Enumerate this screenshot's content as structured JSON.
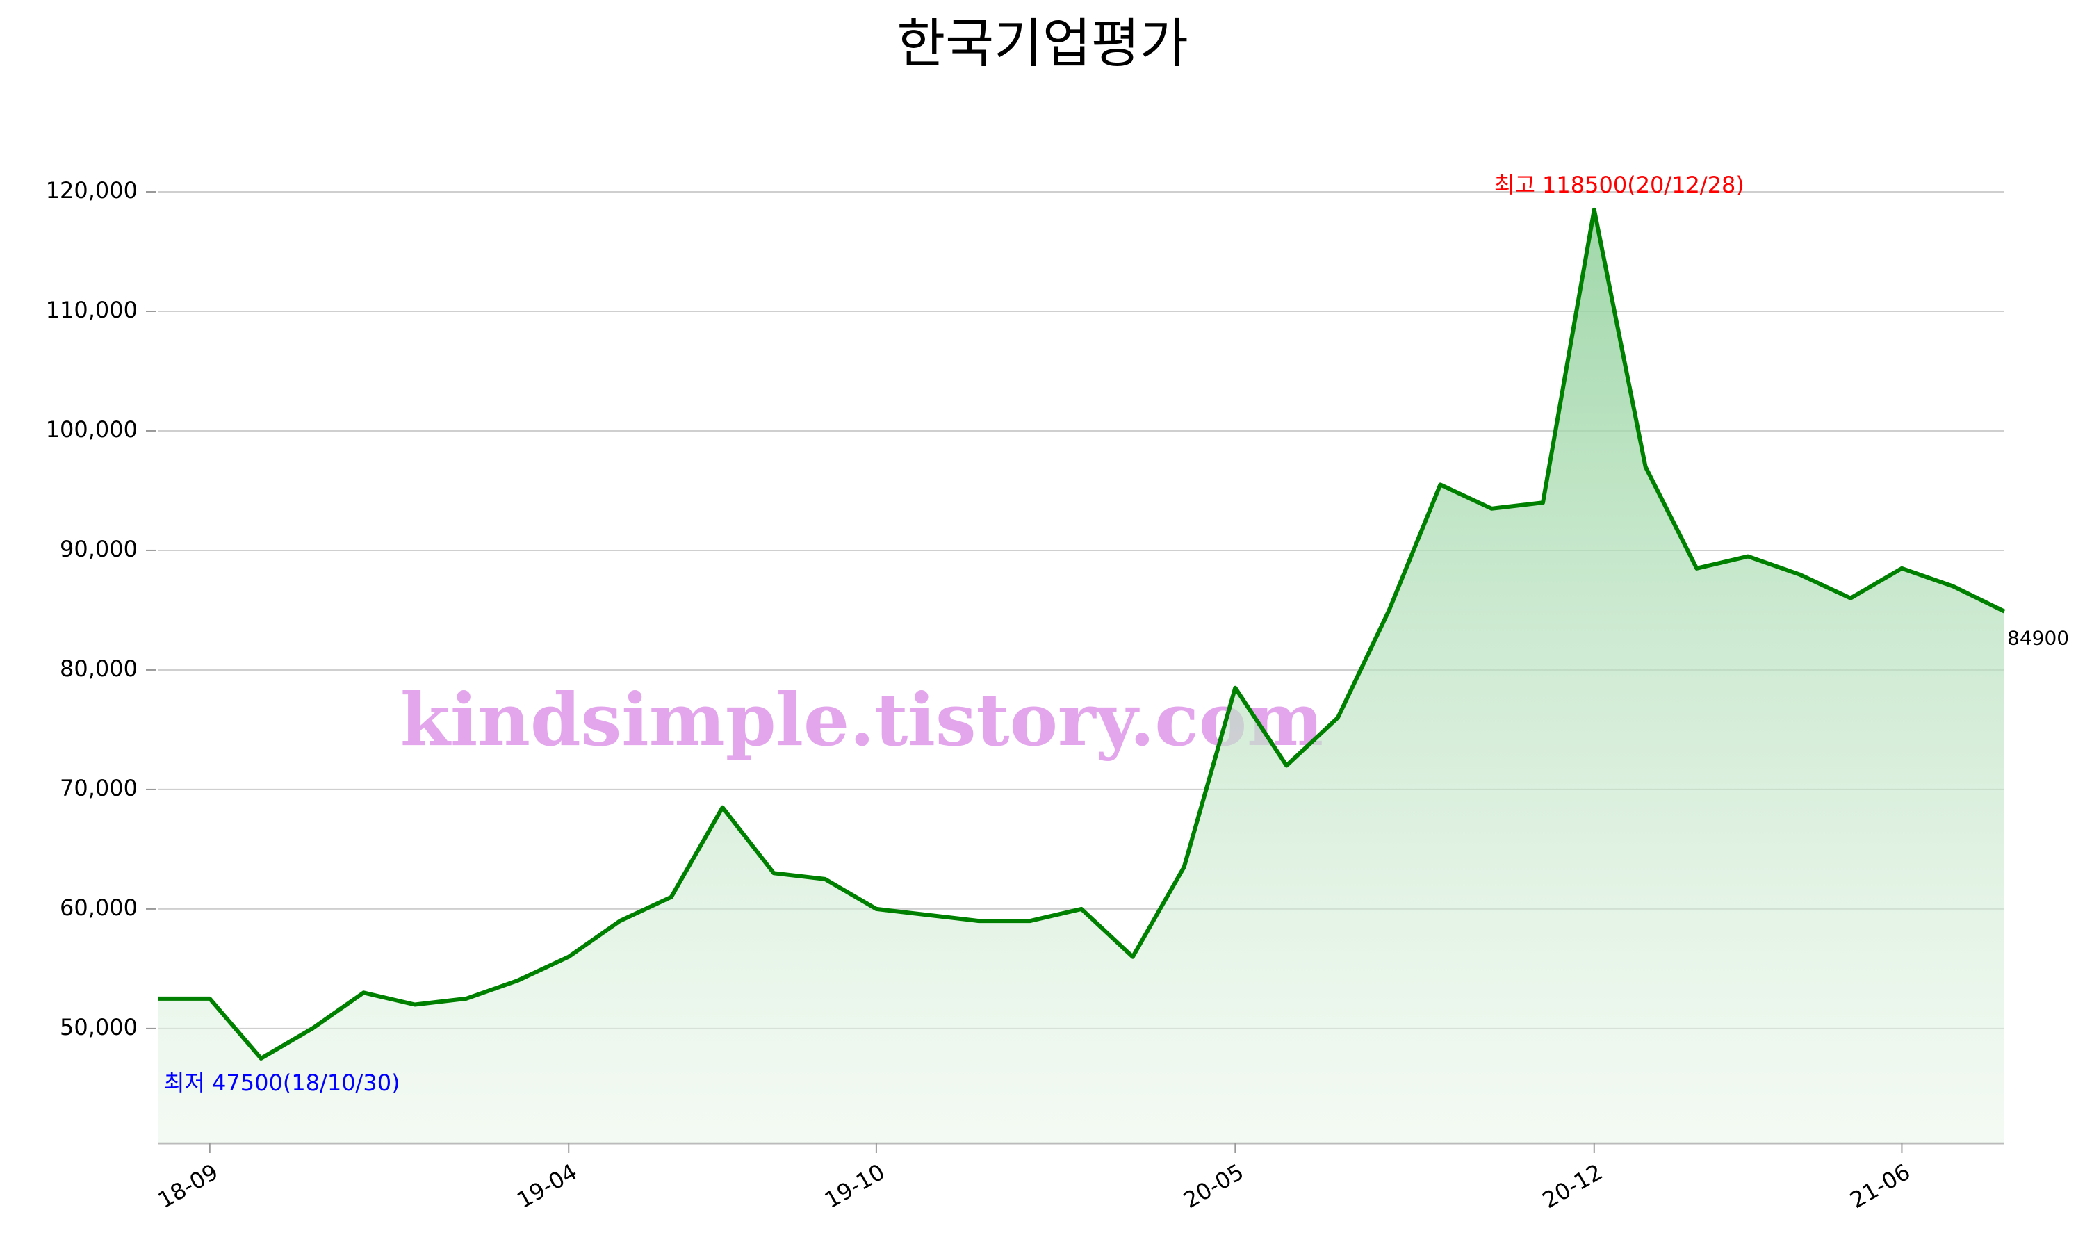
{
  "chart_data": {
    "type": "line",
    "title": "한국기업평가",
    "x": [
      "18-08",
      "18-09",
      "18-10",
      "18-11",
      "18-12",
      "19-01",
      "19-02",
      "19-03",
      "19-04",
      "19-05",
      "19-06",
      "19-07",
      "19-08",
      "19-09",
      "19-10",
      "19-11",
      "19-12",
      "20-01",
      "20-02",
      "20-03",
      "20-04",
      "20-05",
      "20-06",
      "20-07",
      "20-08",
      "20-09",
      "20-10",
      "20-11",
      "20-12",
      "21-01",
      "21-02",
      "21-03",
      "21-04",
      "21-05",
      "21-06",
      "21-07",
      "21-08"
    ],
    "series": [
      {
        "color": "#008000",
        "values": [
          52500,
          52500,
          47500,
          50000,
          53000,
          52000,
          52500,
          54000,
          56000,
          59000,
          61000,
          68500,
          63000,
          62500,
          60000,
          59500,
          59000,
          59000,
          60000,
          56000,
          63500,
          78500,
          72000,
          76000,
          85000,
          95500,
          93500,
          94000,
          118500,
          97000,
          88500,
          89500,
          88000,
          86000,
          88500,
          87000,
          84900
        ]
      }
    ],
    "ylim": [
      40400,
      120000
    ],
    "yticks": [
      {
        "value": 50000,
        "label": "50,000"
      },
      {
        "value": 60000,
        "label": "60,000"
      },
      {
        "value": 70000,
        "label": "70,000"
      },
      {
        "value": 80000,
        "label": "80,000"
      },
      {
        "value": 90000,
        "label": "90,000"
      },
      {
        "value": 100000,
        "label": "100,000"
      },
      {
        "value": 110000,
        "label": "110,000"
      },
      {
        "value": 120000,
        "label": "120,000"
      }
    ],
    "xticks": [
      "18-09",
      "19-04",
      "19-10",
      "20-05",
      "20-12",
      "21-06"
    ],
    "grid": true,
    "annotations": [
      {
        "text": "최고 118500(20/12/28)",
        "color": "#ff0000"
      },
      {
        "text": "최저 47500(18/10/30)",
        "color": "#0000ff"
      }
    ],
    "watermark": "kindsimple.tistory.com"
  }
}
